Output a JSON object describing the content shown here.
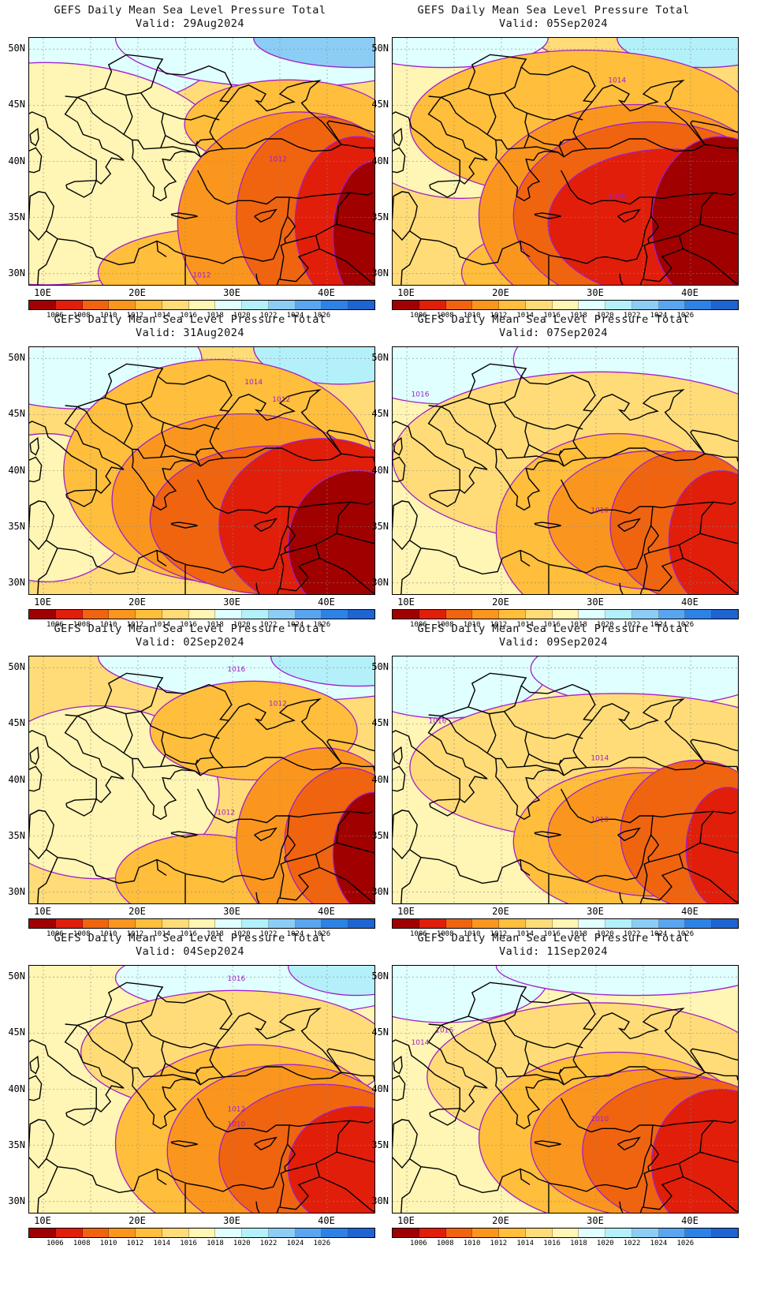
{
  "title_line1": "GEFS Daily Mean Sea Level Pressure Total",
  "colorbar": {
    "colors": [
      "#a00000",
      "#e11e0a",
      "#f0640f",
      "#fa961e",
      "#ffbe3c",
      "#ffdc78",
      "#fff5b4",
      "#e0ffff",
      "#b4f0fa",
      "#8ccdf5",
      "#5aa5f0",
      "#2d82e6",
      "#1e64d2"
    ],
    "labels": [
      "1006",
      "1008",
      "1010",
      "1012",
      "1014",
      "1016",
      "1018",
      "1020",
      "1022",
      "1024",
      "1026"
    ]
  },
  "axes": {
    "y_labels": [
      "50N",
      "45N",
      "40N",
      "35N",
      "30N"
    ],
    "x_labels": [
      "10E",
      "20E",
      "30E",
      "40E"
    ]
  },
  "panels": [
    {
      "valid": "Valid: 29Aug2024",
      "contour_labels": [
        "1012",
        "1012"
      ]
    },
    {
      "valid": "Valid: 05Sep2024",
      "contour_labels": [
        "1014",
        "1008"
      ]
    },
    {
      "valid": "Valid: 31Aug2024",
      "contour_labels": [
        "1014",
        "1012"
      ]
    },
    {
      "valid": "Valid: 07Sep2024",
      "contour_labels": [
        "1016",
        "1010"
      ]
    },
    {
      "valid": "Valid: 02Sep2024",
      "contour_labels": [
        "1016",
        "1012",
        "1012"
      ]
    },
    {
      "valid": "Valid: 09Sep2024",
      "contour_labels": [
        "1016",
        "1014",
        "1010"
      ]
    },
    {
      "valid": "Valid: 04Sep2024",
      "contour_labels": [
        "1016",
        "1012",
        "1010"
      ]
    },
    {
      "valid": "Valid: 11Sep2024",
      "contour_labels": [
        "1016",
        "1014",
        "1010"
      ]
    }
  ]
}
